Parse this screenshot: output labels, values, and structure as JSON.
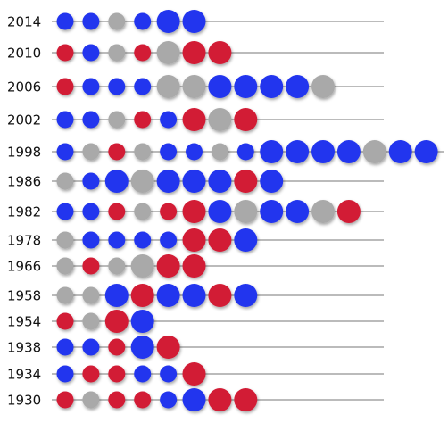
{
  "rows": [
    {
      "year": "2014",
      "dots": [
        "#2136ee",
        "#2136ee",
        "#a9a9a9",
        "#2136ee",
        "#2136ee",
        "#2136ee"
      ],
      "large": [
        false,
        false,
        false,
        false,
        true,
        true
      ]
    },
    {
      "year": "2010",
      "dots": [
        "#d21a35",
        "#2136ee",
        "#a9a9a9",
        "#d21a35",
        "#a9a9a9",
        "#d21a35",
        "#d21a35"
      ],
      "large": [
        false,
        false,
        false,
        false,
        true,
        true,
        true
      ]
    },
    {
      "year": "2006",
      "dots": [
        "#d21a35",
        "#2136ee",
        "#2136ee",
        "#2136ee",
        "#a9a9a9",
        "#a9a9a9",
        "#2136ee",
        "#2136ee",
        "#2136ee",
        "#2136ee",
        "#a9a9a9"
      ],
      "large": [
        false,
        false,
        false,
        false,
        true,
        true,
        true,
        true,
        true,
        true,
        true
      ]
    },
    {
      "year": "2002",
      "dots": [
        "#2136ee",
        "#2136ee",
        "#a9a9a9",
        "#d21a35",
        "#2136ee",
        "#d21a35",
        "#a9a9a9",
        "#d21a35"
      ],
      "large": [
        false,
        false,
        false,
        false,
        false,
        true,
        true,
        true
      ]
    },
    {
      "year": "1998",
      "dots": [
        "#2136ee",
        "#a9a9a9",
        "#d21a35",
        "#a9a9a9",
        "#2136ee",
        "#2136ee",
        "#a9a9a9",
        "#2136ee",
        "#2136ee",
        "#2136ee",
        "#2136ee",
        "#2136ee",
        "#a9a9a9",
        "#2136ee",
        "#2136ee"
      ],
      "large": [
        false,
        false,
        false,
        false,
        false,
        false,
        false,
        false,
        true,
        true,
        true,
        true,
        true,
        true,
        true
      ]
    },
    {
      "year": "1986",
      "dots": [
        "#a9a9a9",
        "#2136ee",
        "#2136ee",
        "#a9a9a9",
        "#2136ee",
        "#2136ee",
        "#2136ee",
        "#d21a35",
        "#2136ee"
      ],
      "large": [
        false,
        false,
        true,
        true,
        true,
        true,
        true,
        true,
        true
      ]
    },
    {
      "year": "1982",
      "dots": [
        "#2136ee",
        "#2136ee",
        "#d21a35",
        "#a9a9a9",
        "#d21a35",
        "#d21a35",
        "#2136ee",
        "#a9a9a9",
        "#2136ee",
        "#2136ee",
        "#a9a9a9",
        "#d21a35"
      ],
      "large": [
        false,
        false,
        false,
        false,
        false,
        true,
        true,
        true,
        true,
        true,
        true,
        true
      ]
    },
    {
      "year": "1978",
      "dots": [
        "#a9a9a9",
        "#2136ee",
        "#2136ee",
        "#2136ee",
        "#2136ee",
        "#d21a35",
        "#d21a35",
        "#2136ee"
      ],
      "large": [
        false,
        false,
        false,
        false,
        false,
        true,
        true,
        true
      ]
    },
    {
      "year": "1966",
      "dots": [
        "#a9a9a9",
        "#d21a35",
        "#a9a9a9",
        "#a9a9a9",
        "#d21a35",
        "#d21a35"
      ],
      "large": [
        false,
        false,
        false,
        true,
        true,
        true
      ]
    },
    {
      "year": "1958",
      "dots": [
        "#a9a9a9",
        "#a9a9a9",
        "#2136ee",
        "#d21a35",
        "#2136ee",
        "#2136ee",
        "#d21a35",
        "#2136ee"
      ],
      "large": [
        false,
        false,
        true,
        true,
        true,
        true,
        true,
        true
      ]
    },
    {
      "year": "1954",
      "dots": [
        "#d21a35",
        "#a9a9a9",
        "#d21a35",
        "#2136ee"
      ],
      "large": [
        false,
        false,
        true,
        true
      ]
    },
    {
      "year": "1938",
      "dots": [
        "#2136ee",
        "#2136ee",
        "#d21a35",
        "#2136ee",
        "#d21a35"
      ],
      "large": [
        false,
        false,
        false,
        true,
        true
      ]
    },
    {
      "year": "1934",
      "dots": [
        "#2136ee",
        "#d21a35",
        "#d21a35",
        "#2136ee",
        "#2136ee",
        "#d21a35"
      ],
      "large": [
        false,
        false,
        false,
        false,
        false,
        true
      ]
    },
    {
      "year": "1930",
      "dots": [
        "#d21a35",
        "#a9a9a9",
        "#d21a35",
        "#d21a35",
        "#2136ee",
        "#2136ee",
        "#d21a35",
        "#d21a35"
      ],
      "large": [
        false,
        false,
        false,
        false,
        false,
        true,
        true,
        true
      ]
    }
  ]
}
